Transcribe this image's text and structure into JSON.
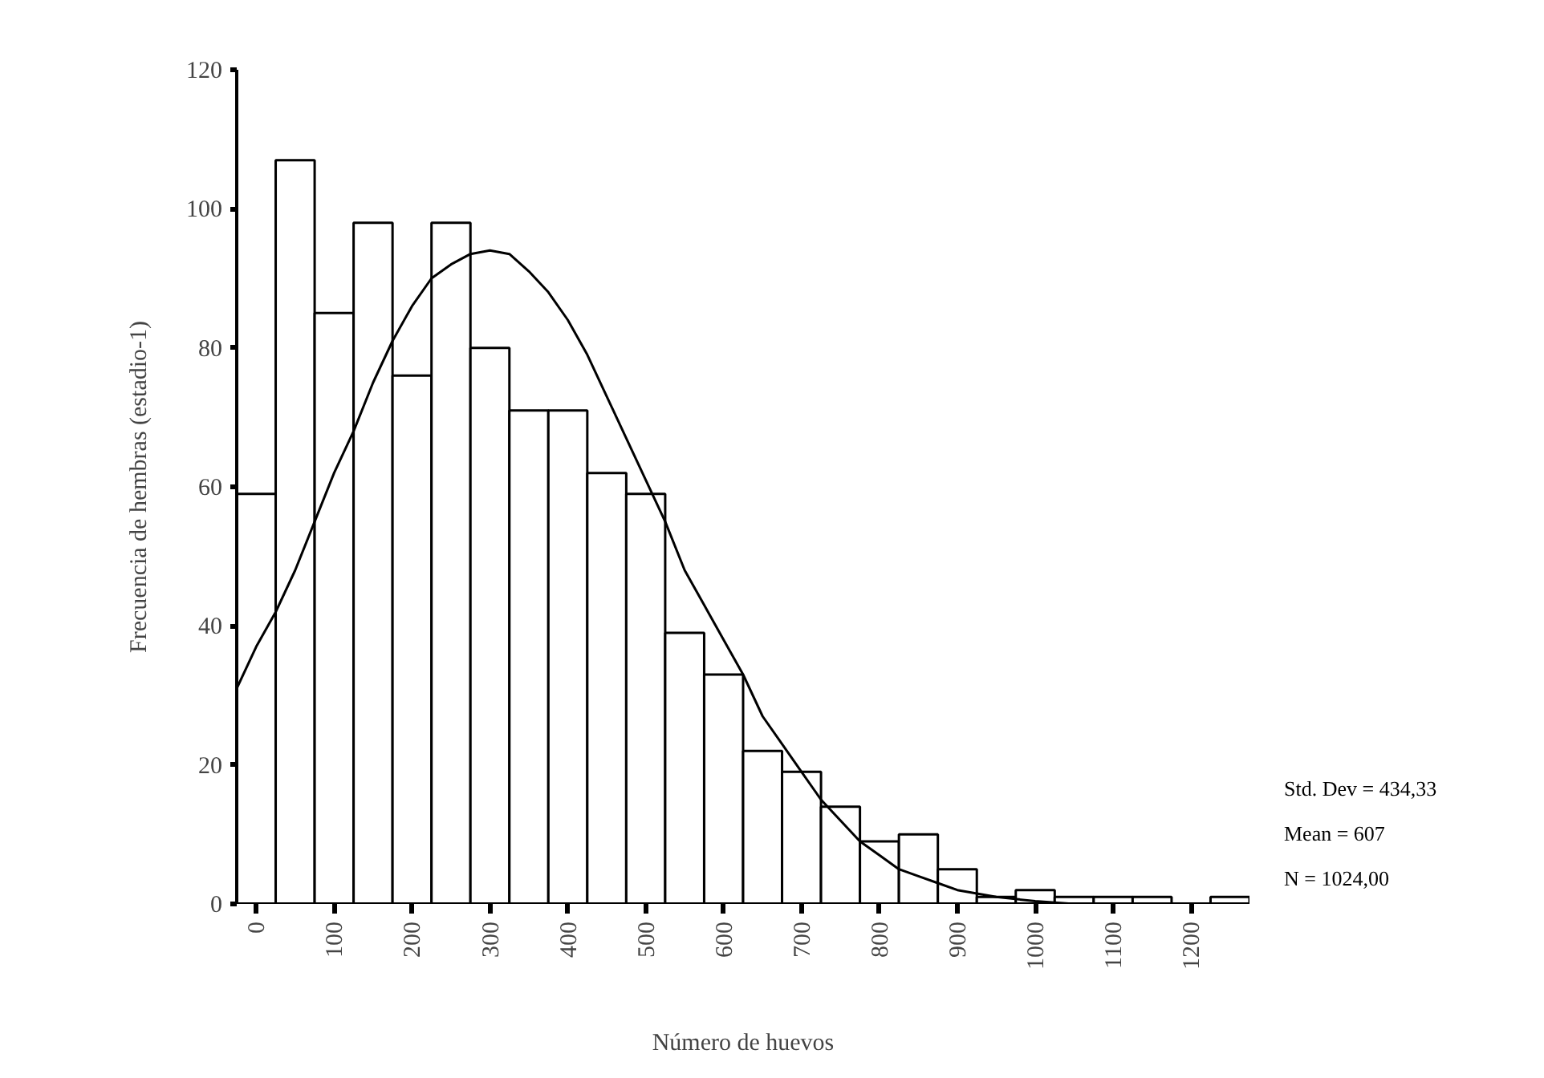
{
  "chart_data": {
    "type": "histogram",
    "xlabel": "Número de huevos",
    "ylabel": "Frecuencia de hembras (estadio-1)",
    "bins": [
      -25,
      25,
      75,
      125,
      175,
      225,
      275,
      325,
      375,
      425,
      475,
      525,
      575,
      625,
      675,
      725,
      775,
      825,
      875,
      925,
      975,
      1025,
      1075,
      1125,
      1175,
      1225,
      1275
    ],
    "values": [
      59,
      107,
      85,
      98,
      76,
      98,
      80,
      71,
      71,
      62,
      59,
      39,
      33,
      22,
      19,
      14,
      9,
      10,
      5,
      1,
      2,
      1,
      1,
      1,
      0,
      1
    ],
    "color": "#ffffff",
    "series": [
      {
        "type": "line",
        "color": "#000000",
        "x": [
          -25,
          0,
          25,
          50,
          75,
          100,
          125,
          150,
          175,
          200,
          225,
          250,
          275,
          300,
          325,
          350,
          375,
          400,
          425,
          450,
          475,
          500,
          525,
          550,
          575,
          600,
          625,
          650,
          675,
          700,
          725,
          750,
          775,
          800,
          825,
          850,
          875,
          900,
          950,
          1000,
          1050
        ],
        "values": [
          31,
          37,
          42,
          48,
          55,
          62,
          68,
          75,
          81,
          86,
          90,
          92,
          93.5,
          94,
          93.5,
          91,
          88,
          84,
          79,
          73,
          67,
          61,
          55,
          48,
          43,
          38,
          33,
          27,
          23,
          19,
          15,
          12,
          9,
          7,
          5,
          4,
          3,
          2,
          1,
          0.4,
          0
        ]
      }
    ],
    "xlim": [
      -25,
      1275
    ],
    "ylim": [
      0,
      120
    ],
    "xticks": [
      0,
      100,
      200,
      300,
      400,
      500,
      600,
      700,
      800,
      900,
      1000,
      1100,
      1200
    ],
    "yticks": [
      0,
      20,
      40,
      60,
      80,
      100,
      120
    ],
    "grid": false,
    "annotations": [
      "Std. Dev = 434,33",
      "Mean = 607",
      "N = 1024,00"
    ]
  }
}
